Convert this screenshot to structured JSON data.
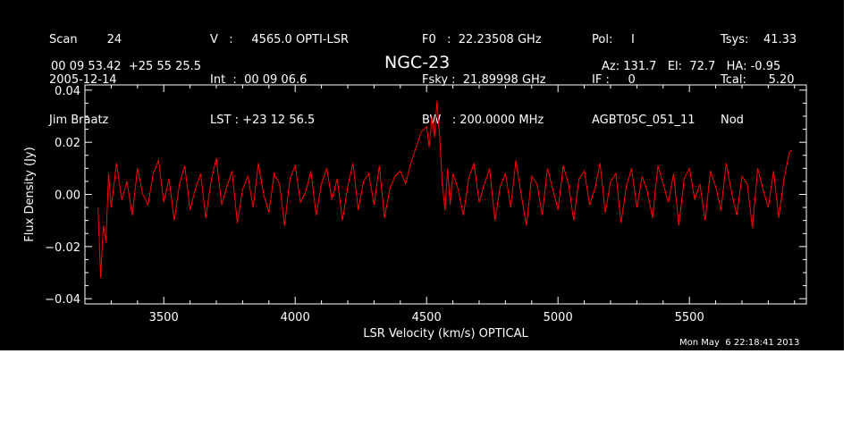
{
  "header": {
    "col1": [
      "Scan        24",
      "2005-12-14",
      "Jim Braatz"
    ],
    "col2": [
      "V   :     4565.0 OPTI-LSR",
      "Int  :  00 09 06.6",
      "LST : +23 12 56.5"
    ],
    "col3": [
      "F0   :  22.23508 GHz",
      "Fsky :  21.89998 GHz",
      "BW   : 200.0000 MHz"
    ],
    "col4": [
      "Pol:     I",
      "IF :     0",
      "AGBT05C_051_11"
    ],
    "col5": [
      "Tsys:    41.33",
      "Tcal:      5.20",
      "Nod"
    ],
    "coords": "00 09 53.42  +25 55 25.5",
    "source": "NGC-23",
    "azelha": "Az: 131.7   El:  72.7   HA: -0.95",
    "datetime": "Mon May  6 22:18:41 2013"
  },
  "colors": {
    "background": "#000000",
    "axes": "#ffffff",
    "series": "#ff0000"
  },
  "chart_data": {
    "type": "line",
    "title": "NGC-23",
    "xlabel": "LSR Velocity (km/s) OPTICAL",
    "ylabel": "Flux Density (Jy)",
    "xlim": [
      3200,
      5945
    ],
    "ylim": [
      -0.042,
      0.042
    ],
    "xticks": [
      3500,
      4000,
      4500,
      5000,
      5500
    ],
    "xtick_labels": [
      "3500",
      "4000",
      "4500",
      "5000",
      "5500"
    ],
    "yticks": [
      -0.04,
      -0.02,
      0.0,
      0.02,
      0.04
    ],
    "ytick_labels": [
      "−0.04",
      "−0.02",
      "0.00",
      "0.02",
      "0.04"
    ],
    "grid": false,
    "series": [
      {
        "color": "#ff0000",
        "x": [
          3250,
          3260,
          3270,
          3280,
          3290,
          3300,
          3320,
          3340,
          3360,
          3380,
          3400,
          3420,
          3440,
          3460,
          3480,
          3500,
          3520,
          3540,
          3560,
          3580,
          3600,
          3620,
          3640,
          3660,
          3680,
          3700,
          3720,
          3740,
          3760,
          3780,
          3800,
          3820,
          3840,
          3860,
          3880,
          3900,
          3920,
          3940,
          3960,
          3980,
          4000,
          4020,
          4040,
          4060,
          4080,
          4100,
          4120,
          4140,
          4160,
          4180,
          4200,
          4220,
          4240,
          4260,
          4280,
          4300,
          4320,
          4340,
          4360,
          4380,
          4400,
          4420,
          4440,
          4460,
          4480,
          4500,
          4510,
          4520,
          4530,
          4540,
          4545,
          4550,
          4555,
          4560,
          4570,
          4580,
          4590,
          4600,
          4620,
          4640,
          4660,
          4680,
          4700,
          4720,
          4740,
          4760,
          4780,
          4800,
          4820,
          4840,
          4860,
          4880,
          4900,
          4920,
          4940,
          4960,
          4980,
          5000,
          5020,
          5040,
          5060,
          5080,
          5100,
          5120,
          5140,
          5160,
          5180,
          5200,
          5220,
          5240,
          5260,
          5280,
          5300,
          5320,
          5340,
          5360,
          5380,
          5400,
          5420,
          5440,
          5460,
          5480,
          5500,
          5520,
          5540,
          5560,
          5580,
          5600,
          5620,
          5640,
          5660,
          5680,
          5700,
          5720,
          5740,
          5760,
          5780,
          5800,
          5820,
          5840,
          5860,
          5880,
          5890
        ],
        "y": [
          -0.005,
          -0.032,
          -0.012,
          -0.018,
          0.008,
          -0.005,
          0.012,
          -0.002,
          0.005,
          -0.008,
          0.01,
          0.0,
          -0.004,
          0.008,
          0.013,
          -0.003,
          0.006,
          -0.01,
          0.004,
          0.011,
          -0.006,
          0.002,
          0.008,
          -0.009,
          0.005,
          0.014,
          -0.004,
          0.003,
          0.009,
          -0.011,
          0.002,
          0.007,
          -0.005,
          0.012,
          0.0,
          -0.007,
          0.008,
          0.004,
          -0.012,
          0.006,
          0.011,
          -0.003,
          0.001,
          0.009,
          -0.008,
          0.004,
          0.01,
          -0.002,
          0.006,
          -0.01,
          0.003,
          0.012,
          -0.006,
          0.005,
          0.008,
          -0.004,
          0.011,
          -0.009,
          0.002,
          0.007,
          0.009,
          0.004,
          0.012,
          0.018,
          0.024,
          0.026,
          0.018,
          0.03,
          0.022,
          0.036,
          0.028,
          0.022,
          0.012,
          0.004,
          -0.006,
          0.01,
          -0.004,
          0.008,
          0.002,
          -0.008,
          0.006,
          0.012,
          -0.003,
          0.004,
          0.01,
          -0.01,
          0.003,
          0.008,
          -0.005,
          0.013,
          0.0,
          -0.012,
          0.007,
          0.004,
          -0.008,
          0.01,
          0.002,
          -0.006,
          0.011,
          0.004,
          -0.01,
          0.006,
          0.009,
          -0.004,
          0.002,
          0.012,
          -0.007,
          0.005,
          0.008,
          -0.011,
          0.003,
          0.01,
          -0.005,
          0.007,
          0.001,
          -0.009,
          0.011,
          0.004,
          -0.003,
          0.008,
          -0.012,
          0.006,
          0.01,
          -0.002,
          0.004,
          -0.01,
          0.009,
          0.003,
          -0.006,
          0.012,
          0.001,
          -0.008,
          0.007,
          0.004,
          -0.013,
          0.01,
          0.002,
          -0.005,
          0.009,
          -0.009,
          0.006,
          0.016,
          0.017
        ]
      }
    ]
  }
}
